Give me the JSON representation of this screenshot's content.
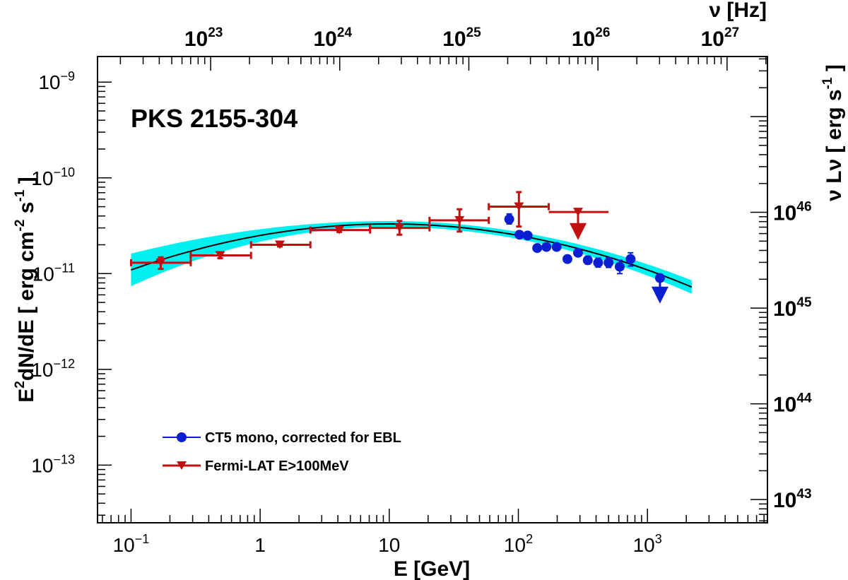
{
  "chart_data": {
    "type": "scatter",
    "title": "PKS 2155-304",
    "xlabel": "E [GeV]",
    "ylabel": {
      "base": "E",
      "sup": "2",
      "main": "dN/dE [ erg cm",
      "sup2": "-2",
      "mid": " s",
      "sup3": "-1",
      "end": " ]"
    },
    "top_axis_label": "ν [Hz]",
    "right_axis_label": {
      "main": "ν Lν [ erg s",
      "sup": "-1",
      "end": " ]"
    },
    "x_log": true,
    "y_log": true,
    "xlim": [
      0.055,
      8500
    ],
    "ylim": [
      2.5e-14,
      1.85e-09
    ],
    "x_ticks": [
      {
        "value": 0.1,
        "base": "10",
        "exp": "−1"
      },
      {
        "value": 1,
        "base": "1",
        "exp": ""
      },
      {
        "value": 10,
        "base": "10",
        "exp": ""
      },
      {
        "value": 100,
        "base": "10",
        "exp": "2"
      },
      {
        "value": 1000,
        "base": "10",
        "exp": "3"
      }
    ],
    "y_ticks": [
      {
        "value": 1e-13,
        "base": "10",
        "exp": "−13"
      },
      {
        "value": 1e-12,
        "base": "10",
        "exp": "−12"
      },
      {
        "value": 1e-11,
        "base": "10",
        "exp": "−11"
      },
      {
        "value": 1e-10,
        "base": "10",
        "exp": "−10"
      },
      {
        "value": 1e-09,
        "base": "10",
        "exp": "−9"
      }
    ],
    "top_ticks": [
      {
        "value": 1e+23,
        "base": "10",
        "exp": "23"
      },
      {
        "value": 1e+24,
        "base": "10",
        "exp": "24"
      },
      {
        "value": 1e+25,
        "base": "10",
        "exp": "25"
      },
      {
        "value": 1e+26,
        "base": "10",
        "exp": "26"
      },
      {
        "value": 1e+27,
        "base": "10",
        "exp": "27"
      }
    ],
    "right_ticks": [
      {
        "value": 1e+43,
        "base": "10",
        "exp": "43"
      },
      {
        "value": 1e+44,
        "base": "10",
        "exp": "44"
      },
      {
        "value": 1e+45,
        "base": "10",
        "exp": "45"
      },
      {
        "value": 1e+46,
        "base": "10",
        "exp": "46"
      }
    ],
    "series": [
      {
        "name": "CT5 mono, corrected for EBL",
        "color": "#0b1fd1",
        "marker": "circle",
        "points": [
          {
            "x": 85,
            "y": 3.7e-11,
            "ylo": 3.3e-11,
            "yhi": 4.2e-11
          },
          {
            "x": 102,
            "y": 2.55e-11,
            "ylo": 2.35e-11,
            "yhi": 2.75e-11
          },
          {
            "x": 118,
            "y": 2.5e-11,
            "ylo": 2.35e-11,
            "yhi": 2.65e-11
          },
          {
            "x": 140,
            "y": 1.85e-11,
            "ylo": 1.75e-11,
            "yhi": 1.95e-11
          },
          {
            "x": 165,
            "y": 1.9e-11,
            "ylo": 1.8e-11,
            "yhi": 2e-11
          },
          {
            "x": 198,
            "y": 1.9e-11,
            "ylo": 1.8e-11,
            "yhi": 2e-11
          },
          {
            "x": 240,
            "y": 1.42e-11,
            "ylo": 1.33e-11,
            "yhi": 1.51e-11
          },
          {
            "x": 290,
            "y": 1.65e-11,
            "ylo": 1.55e-11,
            "yhi": 1.75e-11
          },
          {
            "x": 345,
            "y": 1.38e-11,
            "ylo": 1.26e-11,
            "yhi": 1.52e-11
          },
          {
            "x": 415,
            "y": 1.3e-11,
            "ylo": 1.17e-11,
            "yhi": 1.45e-11
          },
          {
            "x": 500,
            "y": 1.3e-11,
            "ylo": 1.16e-11,
            "yhi": 1.46e-11
          },
          {
            "x": 610,
            "y": 1.18e-11,
            "ylo": 1e-11,
            "yhi": 1.38e-11
          },
          {
            "x": 740,
            "y": 1.42e-11,
            "ylo": 1.2e-11,
            "yhi": 1.65e-11
          }
        ],
        "upper_limits": [
          {
            "x": 1250,
            "y": 9e-12,
            "arrow_to": 5.2e-12
          }
        ]
      },
      {
        "name": "Fermi-LAT E>100MeV",
        "color": "#c01010",
        "marker": "triangle-down",
        "points": [
          {
            "x": 0.17,
            "y": 1.3e-11,
            "xlo": 0.1,
            "xhi": 0.29,
            "ylo": 1.12e-11,
            "yhi": 1.48e-11
          },
          {
            "x": 0.49,
            "y": 1.55e-11,
            "xlo": 0.29,
            "xhi": 0.85,
            "ylo": 1.45e-11,
            "yhi": 1.65e-11
          },
          {
            "x": 1.42,
            "y": 2e-11,
            "xlo": 0.85,
            "xhi": 2.45,
            "ylo": 1.92e-11,
            "yhi": 2.08e-11
          },
          {
            "x": 4.1,
            "y": 2.85e-11,
            "xlo": 2.45,
            "xhi": 7.1,
            "ylo": 2.72e-11,
            "yhi": 2.98e-11
          },
          {
            "x": 12.0,
            "y": 3e-11,
            "xlo": 7.1,
            "xhi": 20.5,
            "ylo": 2.55e-11,
            "yhi": 3.55e-11
          },
          {
            "x": 35.0,
            "y": 3.6e-11,
            "xlo": 20.5,
            "xhi": 59,
            "ylo": 2.75e-11,
            "yhi": 4.7e-11
          },
          {
            "x": 101,
            "y": 5e-11,
            "xlo": 59,
            "xhi": 172,
            "ylo": 3.1e-11,
            "yhi": 7.1e-11
          }
        ],
        "upper_limits": [
          {
            "x": 290,
            "y": 4.4e-11,
            "xlo": 172,
            "xhi": 500,
            "arrow_to": 2.4e-11
          }
        ]
      }
    ],
    "model": {
      "type": "log-parabola",
      "line_color": "#000000",
      "band_color": "#00f0f0",
      "x_range": [
        0.1,
        2200
      ],
      "peak_x": 10,
      "peak_y": 3.3e-11,
      "curvature": 0.12,
      "band_width_dex_at_ends": [
        0.17,
        0.07
      ],
      "band_width_dex_at_peak": 0.03
    },
    "legend": {
      "placement": "bottom-left",
      "entries": [
        {
          "label": "CT5 mono, corrected for EBL",
          "color": "#0b1fd1",
          "marker": "circle"
        },
        {
          "label": "Fermi-LAT E>100MeV",
          "color": "#c01010",
          "marker": "triangle-down"
        }
      ]
    },
    "grid": false
  }
}
